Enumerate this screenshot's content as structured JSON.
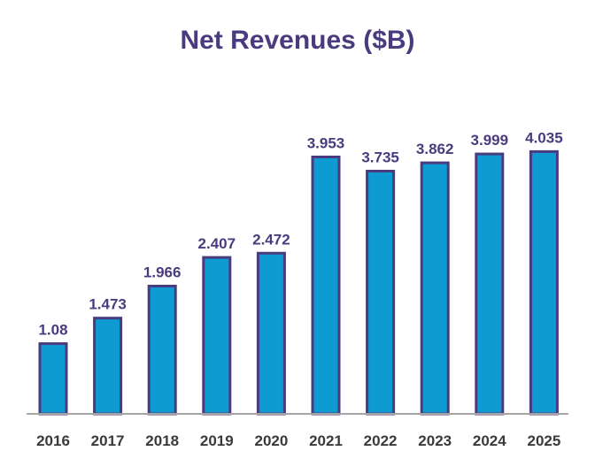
{
  "colors": {
    "title": "#4a3b7f",
    "bar_fill": "#0e9bd2",
    "bar_stroke": "#4a3b7f",
    "label": "#4a3b7f",
    "tick_label": "#3a3a3a",
    "axis": "#a6a6a6"
  },
  "chart_data": {
    "type": "bar",
    "title": "Net Revenues ($B)",
    "xlabel": "",
    "ylabel": "",
    "categories": [
      "2016",
      "2017",
      "2018",
      "2019",
      "2020",
      "2021",
      "2022",
      "2023",
      "2024",
      "2025"
    ],
    "values": [
      1.08,
      1.473,
      1.966,
      2.407,
      2.472,
      3.953,
      3.735,
      3.862,
      3.999,
      4.035
    ],
    "value_labels": [
      "1.08",
      "1.473",
      "1.966",
      "2.407",
      "2.472",
      "3.953",
      "3.735",
      "3.862",
      "3.999",
      "4.035"
    ],
    "ylim": [
      0,
      5
    ],
    "grid": false,
    "legend": "none"
  }
}
